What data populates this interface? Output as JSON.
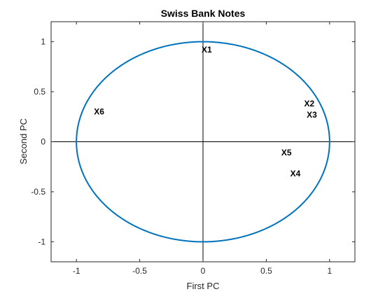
{
  "chart_data": {
    "type": "scatter",
    "title": "Swiss Bank Notes",
    "xlabel": "First PC",
    "ylabel": "Second PC",
    "xlim": [
      -1.2,
      1.2
    ],
    "ylim": [
      -1.2,
      1.2
    ],
    "xticks": [
      -1,
      -0.5,
      0,
      0.5,
      1
    ],
    "xtick_labels": [
      "-1",
      "-0.5",
      "0",
      "0.5",
      "1"
    ],
    "yticks": [
      1,
      0.5,
      0,
      -0.5,
      -1
    ],
    "ytick_labels": [
      "1",
      "0.5",
      "0",
      "-0.5",
      "-1"
    ],
    "grid": false,
    "unit_circle": true,
    "crosshair_axes": true,
    "circle_color": "#0072BD",
    "points": [
      {
        "label": "X1",
        "x": 0.0,
        "y": 0.92
      },
      {
        "label": "X2",
        "x": 0.81,
        "y": 0.38
      },
      {
        "label": "X3",
        "x": 0.83,
        "y": 0.27
      },
      {
        "label": "X4",
        "x": 0.7,
        "y": -0.32
      },
      {
        "label": "X5",
        "x": 0.63,
        "y": -0.11
      },
      {
        "label": "X6",
        "x": -0.85,
        "y": 0.3
      }
    ]
  }
}
